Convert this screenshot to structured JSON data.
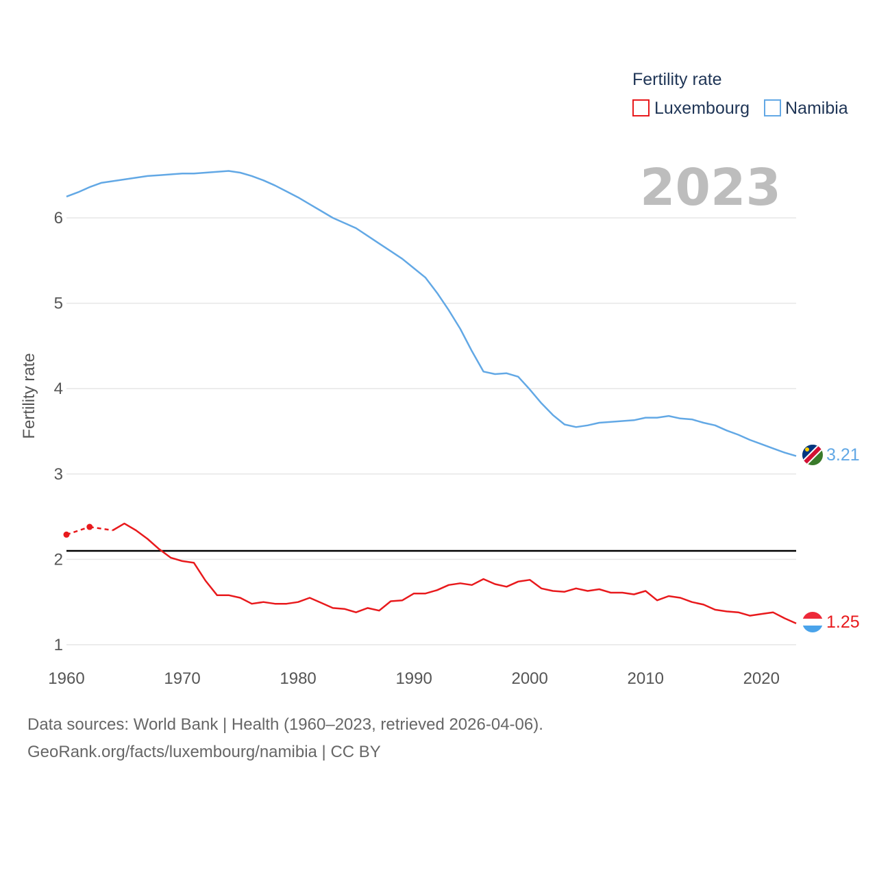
{
  "legend": {
    "title": "Fertility rate",
    "items": [
      {
        "label": "Luxembourg",
        "color": "#e8191c"
      },
      {
        "label": "Namibia",
        "color": "#62a8e5"
      }
    ]
  },
  "year_label": "2023",
  "source": {
    "line1": "Data sources: World Bank | Health (1960–2023, retrieved 2026-04-06).",
    "line2": "GeoRank.org/facts/luxembourg/namibia | CC BY"
  },
  "chart_data": {
    "type": "line",
    "title": "Fertility rate",
    "xlabel": "",
    "ylabel": "Fertility rate",
    "xlim": [
      1960,
      2023
    ],
    "ylim": [
      1,
      6.5
    ],
    "xticks": [
      1960,
      1970,
      1980,
      1990,
      2000,
      2010,
      2020
    ],
    "yticks": [
      1,
      2,
      3,
      4,
      5,
      6
    ],
    "reference_line": 2.1,
    "grid": true,
    "legend_position": "top-right",
    "series": [
      {
        "name": "Luxembourg",
        "color": "#e8191c",
        "end_label": "1.25",
        "gap_years_dashed": [
          [
            1960,
            1962
          ],
          [
            1962,
            1964
          ]
        ],
        "points": [
          [
            1960,
            2.29
          ],
          [
            1962,
            2.38
          ],
          [
            1964,
            2.34
          ],
          [
            1965,
            2.42
          ],
          [
            1966,
            2.34
          ],
          [
            1967,
            2.24
          ],
          [
            1968,
            2.12
          ],
          [
            1969,
            2.02
          ],
          [
            1970,
            1.98
          ],
          [
            1971,
            1.96
          ],
          [
            1972,
            1.75
          ],
          [
            1973,
            1.58
          ],
          [
            1974,
            1.58
          ],
          [
            1975,
            1.55
          ],
          [
            1976,
            1.48
          ],
          [
            1977,
            1.5
          ],
          [
            1978,
            1.48
          ],
          [
            1979,
            1.48
          ],
          [
            1980,
            1.5
          ],
          [
            1981,
            1.55
          ],
          [
            1982,
            1.49
          ],
          [
            1983,
            1.43
          ],
          [
            1984,
            1.42
          ],
          [
            1985,
            1.38
          ],
          [
            1986,
            1.43
          ],
          [
            1987,
            1.4
          ],
          [
            1988,
            1.51
          ],
          [
            1989,
            1.52
          ],
          [
            1990,
            1.6
          ],
          [
            1991,
            1.6
          ],
          [
            1992,
            1.64
          ],
          [
            1993,
            1.7
          ],
          [
            1994,
            1.72
          ],
          [
            1995,
            1.7
          ],
          [
            1996,
            1.77
          ],
          [
            1997,
            1.71
          ],
          [
            1998,
            1.68
          ],
          [
            1999,
            1.74
          ],
          [
            2000,
            1.76
          ],
          [
            2001,
            1.66
          ],
          [
            2002,
            1.63
          ],
          [
            2003,
            1.62
          ],
          [
            2004,
            1.66
          ],
          [
            2005,
            1.63
          ],
          [
            2006,
            1.65
          ],
          [
            2007,
            1.61
          ],
          [
            2008,
            1.61
          ],
          [
            2009,
            1.59
          ],
          [
            2010,
            1.63
          ],
          [
            2011,
            1.52
          ],
          [
            2012,
            1.57
          ],
          [
            2013,
            1.55
          ],
          [
            2014,
            1.5
          ],
          [
            2015,
            1.47
          ],
          [
            2016,
            1.41
          ],
          [
            2017,
            1.39
          ],
          [
            2018,
            1.38
          ],
          [
            2019,
            1.34
          ],
          [
            2020,
            1.36
          ],
          [
            2021,
            1.38
          ],
          [
            2022,
            1.31
          ],
          [
            2023,
            1.25
          ]
        ]
      },
      {
        "name": "Namibia",
        "color": "#62a8e5",
        "end_label": "3.21",
        "points": [
          [
            1960,
            6.25
          ],
          [
            1961,
            6.3
          ],
          [
            1962,
            6.36
          ],
          [
            1963,
            6.41
          ],
          [
            1964,
            6.43
          ],
          [
            1965,
            6.45
          ],
          [
            1966,
            6.47
          ],
          [
            1967,
            6.49
          ],
          [
            1968,
            6.5
          ],
          [
            1969,
            6.51
          ],
          [
            1970,
            6.52
          ],
          [
            1971,
            6.52
          ],
          [
            1972,
            6.53
          ],
          [
            1973,
            6.54
          ],
          [
            1974,
            6.55
          ],
          [
            1975,
            6.53
          ],
          [
            1976,
            6.49
          ],
          [
            1977,
            6.44
          ],
          [
            1978,
            6.38
          ],
          [
            1979,
            6.31
          ],
          [
            1980,
            6.24
          ],
          [
            1981,
            6.16
          ],
          [
            1982,
            6.08
          ],
          [
            1983,
            6.0
          ],
          [
            1984,
            5.94
          ],
          [
            1985,
            5.88
          ],
          [
            1986,
            5.79
          ],
          [
            1987,
            5.7
          ],
          [
            1988,
            5.61
          ],
          [
            1989,
            5.52
          ],
          [
            1990,
            5.41
          ],
          [
            1991,
            5.3
          ],
          [
            1992,
            5.12
          ],
          [
            1993,
            4.92
          ],
          [
            1994,
            4.7
          ],
          [
            1995,
            4.44
          ],
          [
            1996,
            4.2
          ],
          [
            1997,
            4.17
          ],
          [
            1998,
            4.18
          ],
          [
            1999,
            4.14
          ],
          [
            2000,
            3.99
          ],
          [
            2001,
            3.83
          ],
          [
            2002,
            3.69
          ],
          [
            2003,
            3.58
          ],
          [
            2004,
            3.55
          ],
          [
            2005,
            3.57
          ],
          [
            2006,
            3.6
          ],
          [
            2007,
            3.61
          ],
          [
            2008,
            3.62
          ],
          [
            2009,
            3.63
          ],
          [
            2010,
            3.66
          ],
          [
            2011,
            3.66
          ],
          [
            2012,
            3.68
          ],
          [
            2013,
            3.65
          ],
          [
            2014,
            3.64
          ],
          [
            2015,
            3.6
          ],
          [
            2016,
            3.57
          ],
          [
            2017,
            3.51
          ],
          [
            2018,
            3.46
          ],
          [
            2019,
            3.4
          ],
          [
            2020,
            3.35
          ],
          [
            2021,
            3.3
          ],
          [
            2022,
            3.25
          ],
          [
            2023,
            3.21
          ]
        ]
      }
    ]
  }
}
